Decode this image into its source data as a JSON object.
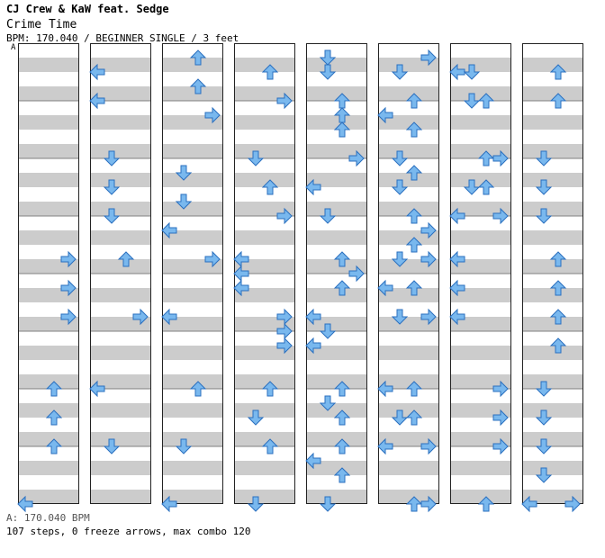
{
  "header": {
    "artist": "CJ Crew & KaW feat. Sedge",
    "song": "Crime Time",
    "meta": "BPM: 170.040 / BEGINNER SINGLE / 3 feet",
    "marker": "A"
  },
  "footer": {
    "bpm_line": "A: 170.040 BPM",
    "stats": "107 steps, 0 freeze arrows, max combo 120"
  },
  "colors": {
    "stripe": "#cccccc",
    "beatline": "#808080",
    "border": "#222222",
    "arrow_fill": "#79b8ee",
    "arrow_stroke": "#2a6fbf"
  },
  "chart_data": {
    "type": "step-chart",
    "lanes": [
      "left",
      "down",
      "up",
      "right"
    ],
    "columns": 8,
    "measures_per_column": 8,
    "rows_per_measure": 4,
    "rows_per_column": 32,
    "notes": [
      {
        "c": 0,
        "r": 15,
        "d": "right"
      },
      {
        "c": 0,
        "r": 17,
        "d": "right"
      },
      {
        "c": 0,
        "r": 19,
        "d": "right"
      },
      {
        "c": 0,
        "r": 24,
        "d": "up"
      },
      {
        "c": 0,
        "r": 26,
        "d": "up"
      },
      {
        "c": 0,
        "r": 28,
        "d": "up"
      },
      {
        "c": 0,
        "r": 32,
        "d": "left"
      },
      {
        "c": 1,
        "r": 2,
        "d": "left"
      },
      {
        "c": 1,
        "r": 4,
        "d": "left"
      },
      {
        "c": 1,
        "r": 8,
        "d": "down"
      },
      {
        "c": 1,
        "r": 10,
        "d": "down"
      },
      {
        "c": 1,
        "r": 12,
        "d": "down"
      },
      {
        "c": 1,
        "r": 15,
        "d": "up"
      },
      {
        "c": 1,
        "r": 19,
        "d": "right"
      },
      {
        "c": 1,
        "r": 24,
        "d": "left"
      },
      {
        "c": 1,
        "r": 28,
        "d": "down"
      },
      {
        "c": 2,
        "r": 1,
        "d": "up"
      },
      {
        "c": 2,
        "r": 3,
        "d": "up"
      },
      {
        "c": 2,
        "r": 5,
        "d": "right"
      },
      {
        "c": 2,
        "r": 9,
        "d": "down"
      },
      {
        "c": 2,
        "r": 11,
        "d": "down"
      },
      {
        "c": 2,
        "r": 13,
        "d": "left"
      },
      {
        "c": 2,
        "r": 15,
        "d": "right"
      },
      {
        "c": 2,
        "r": 19,
        "d": "left"
      },
      {
        "c": 2,
        "r": 24,
        "d": "up"
      },
      {
        "c": 2,
        "r": 28,
        "d": "down"
      },
      {
        "c": 2,
        "r": 32,
        "d": "left"
      },
      {
        "c": 3,
        "r": 2,
        "d": "up"
      },
      {
        "c": 3,
        "r": 4,
        "d": "right"
      },
      {
        "c": 3,
        "r": 8,
        "d": "down"
      },
      {
        "c": 3,
        "r": 10,
        "d": "up"
      },
      {
        "c": 3,
        "r": 12,
        "d": "right"
      },
      {
        "c": 3,
        "r": 15,
        "d": "left"
      },
      {
        "c": 3,
        "r": 16,
        "d": "left"
      },
      {
        "c": 3,
        "r": 17,
        "d": "left"
      },
      {
        "c": 3,
        "r": 19,
        "d": "right"
      },
      {
        "c": 3,
        "r": 20,
        "d": "right"
      },
      {
        "c": 3,
        "r": 21,
        "d": "right"
      },
      {
        "c": 3,
        "r": 24,
        "d": "up"
      },
      {
        "c": 3,
        "r": 26,
        "d": "down"
      },
      {
        "c": 3,
        "r": 28,
        "d": "up"
      },
      {
        "c": 3,
        "r": 32,
        "d": "down"
      },
      {
        "c": 4,
        "r": 1,
        "d": "down"
      },
      {
        "c": 4,
        "r": 2,
        "d": "down"
      },
      {
        "c": 4,
        "r": 4,
        "d": "up"
      },
      {
        "c": 4,
        "r": 5,
        "d": "up"
      },
      {
        "c": 4,
        "r": 6,
        "d": "up"
      },
      {
        "c": 4,
        "r": 8,
        "d": "right"
      },
      {
        "c": 4,
        "r": 10,
        "d": "left"
      },
      {
        "c": 4,
        "r": 12,
        "d": "down"
      },
      {
        "c": 4,
        "r": 15,
        "d": "up"
      },
      {
        "c": 4,
        "r": 16,
        "d": "right"
      },
      {
        "c": 4,
        "r": 17,
        "d": "up"
      },
      {
        "c": 4,
        "r": 19,
        "d": "left"
      },
      {
        "c": 4,
        "r": 20,
        "d": "down"
      },
      {
        "c": 4,
        "r": 21,
        "d": "left"
      },
      {
        "c": 4,
        "r": 24,
        "d": "up"
      },
      {
        "c": 4,
        "r": 25,
        "d": "down"
      },
      {
        "c": 4,
        "r": 26,
        "d": "up"
      },
      {
        "c": 4,
        "r": 28,
        "d": "up"
      },
      {
        "c": 4,
        "r": 29,
        "d": "left"
      },
      {
        "c": 4,
        "r": 30,
        "d": "up"
      },
      {
        "c": 4,
        "r": 32,
        "d": "down"
      },
      {
        "c": 5,
        "r": 1,
        "d": "right"
      },
      {
        "c": 5,
        "r": 2,
        "d": "down"
      },
      {
        "c": 5,
        "r": 4,
        "d": "up"
      },
      {
        "c": 5,
        "r": 5,
        "d": "left"
      },
      {
        "c": 5,
        "r": 6,
        "d": "up"
      },
      {
        "c": 5,
        "r": 8,
        "d": "down"
      },
      {
        "c": 5,
        "r": 9,
        "d": "up"
      },
      {
        "c": 5,
        "r": 10,
        "d": "down"
      },
      {
        "c": 5,
        "r": 12,
        "d": "up"
      },
      {
        "c": 5,
        "r": 13,
        "d": "right"
      },
      {
        "c": 5,
        "r": 14,
        "d": "up"
      },
      {
        "c": 5,
        "r": 15,
        "d": "down"
      },
      {
        "c": 5,
        "r": 15,
        "d": "right"
      },
      {
        "c": 5,
        "r": 17,
        "d": "left"
      },
      {
        "c": 5,
        "r": 17,
        "d": "up"
      },
      {
        "c": 5,
        "r": 19,
        "d": "down"
      },
      {
        "c": 5,
        "r": 19,
        "d": "right"
      },
      {
        "c": 5,
        "r": 24,
        "d": "left"
      },
      {
        "c": 5,
        "r": 24,
        "d": "up"
      },
      {
        "c": 5,
        "r": 26,
        "d": "down"
      },
      {
        "c": 5,
        "r": 26,
        "d": "up"
      },
      {
        "c": 5,
        "r": 28,
        "d": "left"
      },
      {
        "c": 5,
        "r": 28,
        "d": "right"
      },
      {
        "c": 5,
        "r": 32,
        "d": "up"
      },
      {
        "c": 5,
        "r": 32,
        "d": "right"
      },
      {
        "c": 6,
        "r": 2,
        "d": "left"
      },
      {
        "c": 6,
        "r": 2,
        "d": "down"
      },
      {
        "c": 6,
        "r": 4,
        "d": "down"
      },
      {
        "c": 6,
        "r": 4,
        "d": "up"
      },
      {
        "c": 6,
        "r": 8,
        "d": "up"
      },
      {
        "c": 6,
        "r": 8,
        "d": "right"
      },
      {
        "c": 6,
        "r": 10,
        "d": "down"
      },
      {
        "c": 6,
        "r": 10,
        "d": "up"
      },
      {
        "c": 6,
        "r": 12,
        "d": "left"
      },
      {
        "c": 6,
        "r": 12,
        "d": "right"
      },
      {
        "c": 6,
        "r": 15,
        "d": "left"
      },
      {
        "c": 6,
        "r": 17,
        "d": "left"
      },
      {
        "c": 6,
        "r": 19,
        "d": "left"
      },
      {
        "c": 6,
        "r": 24,
        "d": "right"
      },
      {
        "c": 6,
        "r": 26,
        "d": "right"
      },
      {
        "c": 6,
        "r": 28,
        "d": "right"
      },
      {
        "c": 6,
        "r": 32,
        "d": "up"
      },
      {
        "c": 7,
        "r": 2,
        "d": "up"
      },
      {
        "c": 7,
        "r": 4,
        "d": "up"
      },
      {
        "c": 7,
        "r": 8,
        "d": "down"
      },
      {
        "c": 7,
        "r": 10,
        "d": "down"
      },
      {
        "c": 7,
        "r": 12,
        "d": "down"
      },
      {
        "c": 7,
        "r": 15,
        "d": "up"
      },
      {
        "c": 7,
        "r": 17,
        "d": "up"
      },
      {
        "c": 7,
        "r": 19,
        "d": "up"
      },
      {
        "c": 7,
        "r": 21,
        "d": "up"
      },
      {
        "c": 7,
        "r": 24,
        "d": "down"
      },
      {
        "c": 7,
        "r": 26,
        "d": "down"
      },
      {
        "c": 7,
        "r": 28,
        "d": "down"
      },
      {
        "c": 7,
        "r": 30,
        "d": "down"
      },
      {
        "c": 7,
        "r": 32,
        "d": "left"
      },
      {
        "c": 7,
        "r": 32,
        "d": "right"
      }
    ]
  }
}
